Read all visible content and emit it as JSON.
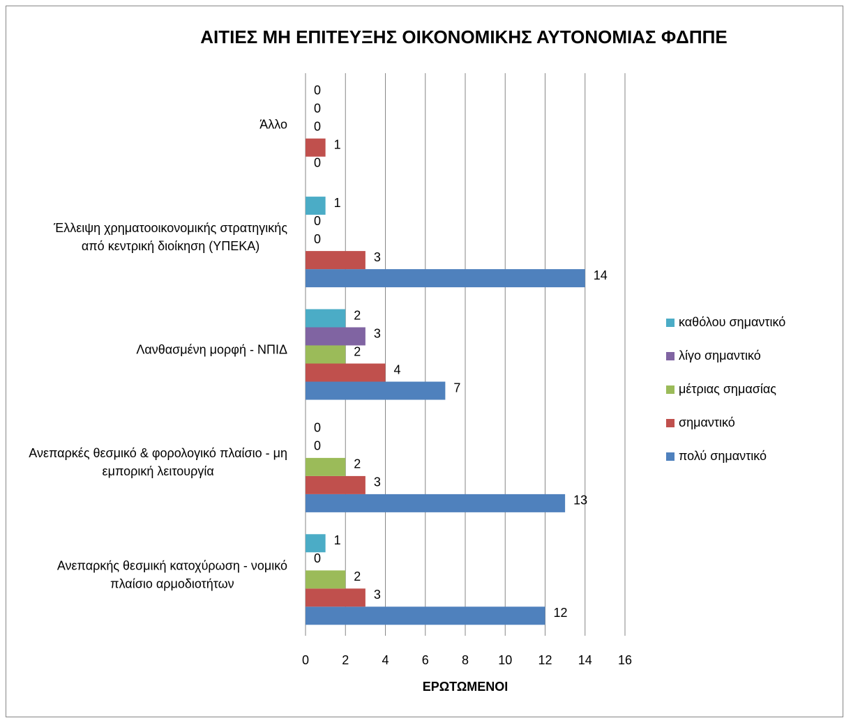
{
  "chart_data": {
    "type": "hbar",
    "title": "ΑΙΤΙΕΣ ΜΗ ΕΠΙΤΕΥΞΗΣ ΟΙΚΟΝΟΜΙΚΗΣ ΑΥΤΟΝΟΜΙΑΣ ΦΔΠΠΕ",
    "x_label": "ΕΡΩΤΩΜΕΝΟΙ",
    "categories": [
      "Ανεπαρκής θεσμική κατοχύρωση - νομικό πλαίσιο αρμοδιοτήτων",
      "Ανεπαρκές θεσμικό & φορολογικό πλαίσιο - μη εμπορική λειτουργία",
      "Λανθασμένη μορφή - ΝΠΙΔ",
      "Έλλειψη χρηματοοικονομικής στρατηγικής από κεντρική διοίκηση (ΥΠΕΚΑ)",
      "Άλλο"
    ],
    "series": [
      {
        "name": "πολύ σημαντικό",
        "color": "#4f81bd",
        "values": [
          12,
          13,
          7,
          14,
          0
        ]
      },
      {
        "name": "σημαντικό",
        "color": "#c0504d",
        "values": [
          3,
          3,
          4,
          3,
          1
        ]
      },
      {
        "name": "μέτριας σημασίας",
        "color": "#9bbb59",
        "values": [
          2,
          2,
          2,
          0,
          0
        ]
      },
      {
        "name": "λίγο σημαντικό",
        "color": "#8064a2",
        "values": [
          0,
          0,
          3,
          0,
          0
        ]
      },
      {
        "name": "καθόλου σημαντικό",
        "color": "#4bacc6",
        "values": [
          1,
          0,
          2,
          1,
          0
        ]
      }
    ],
    "xlim": [
      0,
      16
    ],
    "xticks": [
      0,
      2,
      4,
      6,
      8,
      10,
      12,
      14,
      16
    ],
    "grid": true,
    "legend": "right"
  }
}
